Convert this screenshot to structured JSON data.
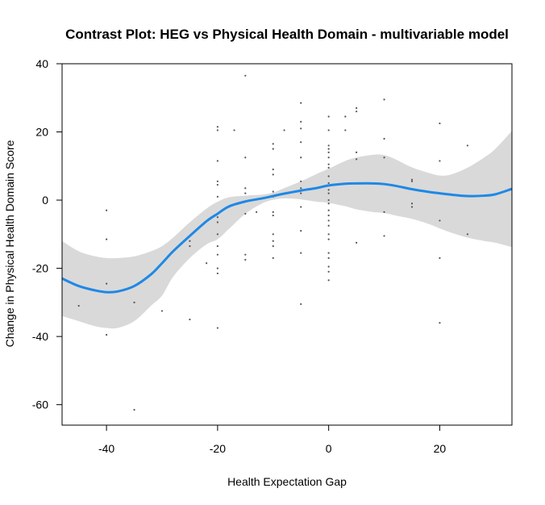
{
  "chart_data": {
    "type": "line",
    "title": "Contrast Plot: HEG vs Physical Health Domain - multivariable model",
    "xlabel": "Health Expectation Gap",
    "ylabel": "Change in Physical Health Domain Score",
    "xlim": [
      -48,
      33
    ],
    "ylim": [
      -66,
      40
    ],
    "x_ticks": [
      -40,
      -20,
      0,
      20
    ],
    "y_ticks": [
      -60,
      -40,
      -20,
      0,
      20,
      40
    ],
    "grid": false,
    "legend": "none",
    "colors": {
      "fit": "#1E88E5",
      "band": "#D9D9D9",
      "points": "#555555",
      "frame": "#000000"
    },
    "series": [
      {
        "kind": "fit",
        "x": [
          -48,
          -45,
          -42,
          -40,
          -38,
          -35,
          -32,
          -30,
          -28,
          -25,
          -22,
          -20,
          -18,
          -15,
          -12,
          -10,
          -8,
          -5,
          -2,
          0,
          3,
          5,
          8,
          10,
          12,
          15,
          18,
          20,
          22,
          25,
          28,
          30,
          33
        ],
        "y": [
          -23,
          -25.2,
          -26.5,
          -27,
          -26.8,
          -25.2,
          -21.8,
          -18.5,
          -15,
          -10.5,
          -6.2,
          -4,
          -1.9,
          -0.4,
          0.5,
          1.2,
          1.9,
          2.8,
          3.6,
          4.3,
          4.8,
          4.9,
          4.9,
          4.7,
          4.2,
          3.2,
          2.4,
          2,
          1.6,
          1.2,
          1.3,
          1.7,
          3.3
        ]
      },
      {
        "kind": "ci-band",
        "x": [
          -48,
          -45,
          -42,
          -40,
          -38,
          -35,
          -32,
          -30,
          -28,
          -25,
          -22,
          -20,
          -18,
          -15,
          -12,
          -10,
          -8,
          -5,
          -2,
          0,
          3,
          5,
          8,
          10,
          12,
          15,
          18,
          20,
          22,
          25,
          28,
          30,
          33
        ],
        "upper": [
          -12,
          -15,
          -16.5,
          -17,
          -17,
          -16.5,
          -15,
          -13.5,
          -11,
          -6.5,
          -2.5,
          -0.5,
          0.8,
          1.3,
          1.6,
          2.2,
          3.5,
          5.5,
          7.8,
          9.2,
          11.5,
          12.5,
          13.3,
          13.2,
          12,
          9.6,
          8,
          7.2,
          7.5,
          9.5,
          12.5,
          15,
          20.3
        ],
        "lower": [
          -34,
          -35.5,
          -37,
          -37.5,
          -37.5,
          -35.5,
          -31,
          -28,
          -22.5,
          -17,
          -13,
          -11.5,
          -8.5,
          -4,
          -1,
          0.1,
          0.5,
          0.2,
          -0.5,
          -0.8,
          -1.8,
          -2.7,
          -3.5,
          -3.8,
          -4.5,
          -5.5,
          -7,
          -8.3,
          -9.5,
          -11,
          -12,
          -12.5,
          -13.8
        ]
      },
      {
        "kind": "scatter",
        "points": [
          [
            -45,
            -31
          ],
          [
            -40,
            -11.5
          ],
          [
            -40,
            -24.5
          ],
          [
            -40,
            -39.5
          ],
          [
            -40,
            -3
          ],
          [
            -35,
            -30
          ],
          [
            -35,
            -61.5
          ],
          [
            -30,
            -32.5
          ],
          [
            -25,
            -12
          ],
          [
            -25,
            -13.5
          ],
          [
            -25,
            -35
          ],
          [
            -22,
            -18.5
          ],
          [
            -20,
            21.5
          ],
          [
            -20,
            20.5
          ],
          [
            -20,
            11.5
          ],
          [
            -20,
            5.5
          ],
          [
            -20,
            4.5
          ],
          [
            -20,
            1
          ],
          [
            -20,
            -5
          ],
          [
            -20,
            -6.5
          ],
          [
            -20,
            -10
          ],
          [
            -20,
            -13.5
          ],
          [
            -20,
            -16
          ],
          [
            -20,
            -20
          ],
          [
            -20,
            -21.5
          ],
          [
            -20,
            -37.5
          ],
          [
            -17,
            20.5
          ],
          [
            -15,
            36.5
          ],
          [
            -15,
            12.5
          ],
          [
            -15,
            3.5
          ],
          [
            -15,
            2
          ],
          [
            -15,
            -4
          ],
          [
            -15,
            -16
          ],
          [
            -15,
            -17.5
          ],
          [
            -13,
            -3.5
          ],
          [
            -10,
            16.5
          ],
          [
            -10,
            15
          ],
          [
            -10,
            9
          ],
          [
            -10,
            7.5
          ],
          [
            -10,
            2.5
          ],
          [
            -10,
            1
          ],
          [
            -10,
            -3.5
          ],
          [
            -10,
            -4.5
          ],
          [
            -10,
            -10
          ],
          [
            -10,
            -12
          ],
          [
            -10,
            -13.5
          ],
          [
            -10,
            -17
          ],
          [
            -8,
            20.5
          ],
          [
            -5,
            28.5
          ],
          [
            -5,
            23
          ],
          [
            -5,
            21
          ],
          [
            -5,
            17
          ],
          [
            -5,
            12.5
          ],
          [
            -5,
            5.5
          ],
          [
            -5,
            3.5
          ],
          [
            -5,
            2
          ],
          [
            -5,
            -2
          ],
          [
            -5,
            -9
          ],
          [
            -5,
            -15.5
          ],
          [
            -5,
            -30.5
          ],
          [
            0,
            24.5
          ],
          [
            0,
            20.5
          ],
          [
            0,
            16
          ],
          [
            0,
            15
          ],
          [
            0,
            14
          ],
          [
            0,
            12.5
          ],
          [
            0,
            10.5
          ],
          [
            0,
            9.5
          ],
          [
            0,
            7
          ],
          [
            0,
            5
          ],
          [
            0,
            3
          ],
          [
            0,
            2
          ],
          [
            0,
            0
          ],
          [
            0,
            -1
          ],
          [
            0,
            -3
          ],
          [
            0,
            -4.5
          ],
          [
            0,
            -6
          ],
          [
            0,
            -7.5
          ],
          [
            0,
            -10
          ],
          [
            0,
            -11.5
          ],
          [
            0,
            -15.5
          ],
          [
            0,
            -17
          ],
          [
            0,
            -19.5
          ],
          [
            0,
            -21
          ],
          [
            0,
            -23.5
          ],
          [
            3,
            24.5
          ],
          [
            3,
            20.5
          ],
          [
            5,
            27
          ],
          [
            5,
            26
          ],
          [
            5,
            14
          ],
          [
            5,
            12
          ],
          [
            5,
            -12.5
          ],
          [
            10,
            29.5
          ],
          [
            10,
            18
          ],
          [
            10,
            12.5
          ],
          [
            10,
            -3.5
          ],
          [
            10,
            -10.5
          ],
          [
            15,
            6
          ],
          [
            15,
            5.5
          ],
          [
            15,
            -1
          ],
          [
            15,
            -2
          ],
          [
            20,
            22.5
          ],
          [
            20,
            11.5
          ],
          [
            20,
            -6
          ],
          [
            20,
            -17
          ],
          [
            20,
            -36
          ],
          [
            25,
            16
          ],
          [
            25,
            -10
          ]
        ]
      }
    ]
  }
}
